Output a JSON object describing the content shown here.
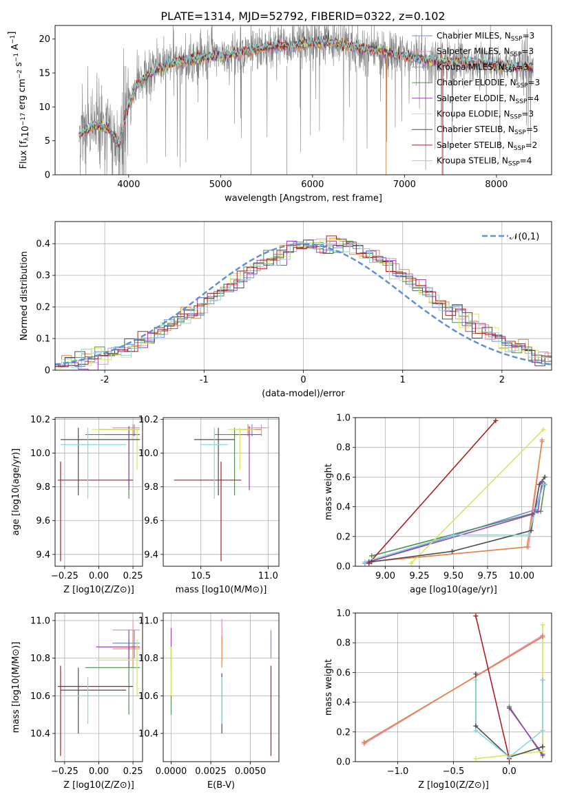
{
  "figure": {
    "title": "PLATE=1314, MJD=52792, FIBERID=0322, z=0.102"
  },
  "colors": {
    "Chabrier MILES": "#6b8fd8",
    "Salpeter MILES": "#e98fc8",
    "Kroupa MILES": "#e8863a",
    "Chabrier ELODIE": "#4f8f4f",
    "Salpeter ELODIE": "#9b3fb5",
    "Kroupa ELODIE": "#d4e85a",
    "Chabrier STELIB": "#4b4b4b",
    "Salpeter STELIB": "#b01c1c",
    "Kroupa STELIB": "#86d8e0",
    "data": "#808080",
    "gaussian": "#5b8fd6",
    "grid": "#b0b0b0"
  },
  "chart_data": [
    {
      "type": "line",
      "id": "spectrum",
      "title": "PLATE=1314, MJD=52792, FIBERID=0322, z=0.102",
      "xlabel": "wavelength [Angstrom, rest frame]",
      "ylabel": "Flux [f_λ 10^-17 erg cm^-2 s^-1 A^-1]",
      "xlim": [
        3200,
        8600
      ],
      "ylim": [
        0,
        22
      ],
      "xticks": [
        4000,
        5000,
        6000,
        7000,
        8000
      ],
      "yticks": [
        0,
        5,
        10,
        15,
        20
      ],
      "continuum": {
        "x": [
          3460,
          3500,
          3600,
          3700,
          3800,
          3900,
          4000,
          4100,
          4200,
          4300,
          4400,
          4500,
          4600,
          4800,
          5000,
          5200,
          5400,
          5600,
          5800,
          6000,
          6200,
          6400,
          6600,
          6800,
          7000,
          7200,
          7400,
          7600,
          7800,
          8000,
          8200,
          8400
        ],
        "y": [
          6,
          6.2,
          7,
          7.2,
          6.5,
          4.5,
          10.5,
          13.5,
          14.5,
          15.5,
          16,
          16.5,
          16.8,
          17.2,
          17.5,
          18,
          18.5,
          19,
          19,
          19.5,
          19.5,
          19,
          18.5,
          18,
          17.5,
          17,
          16.8,
          16.5,
          16.5,
          16.2,
          16,
          15.8
        ]
      },
      "legend": {
        "placement": "top-right",
        "entries": [
          {
            "label": "Chabrier MILES, N",
            "sub": "SSP",
            "n": "=3",
            "key": "Chabrier MILES"
          },
          {
            "label": "Salpeter MILES, N",
            "sub": "SSP",
            "n": "=3",
            "key": "Salpeter MILES"
          },
          {
            "label": "Kroupa MILES, N",
            "sub": "SSP",
            "n": "=3",
            "key": "Kroupa MILES"
          },
          {
            "label": "Chabrier ELODIE, N",
            "sub": "SSP",
            "n": "=3",
            "key": "Chabrier ELODIE"
          },
          {
            "label": "Salpeter ELODIE, N",
            "sub": "SSP",
            "n": "=4",
            "key": "Salpeter ELODIE"
          },
          {
            "label": "Kroupa ELODIE, N",
            "sub": "SSP",
            "n": "=3",
            "key": "Kroupa ELODIE"
          },
          {
            "label": "Chabrier STELIB, N",
            "sub": "SSP",
            "n": "=5",
            "key": "Chabrier STELIB"
          },
          {
            "label": "Salpeter STELIB, N",
            "sub": "SSP",
            "n": "=2",
            "key": "Salpeter STELIB"
          },
          {
            "label": "Kroupa STELIB, N",
            "sub": "SSP",
            "n": "=4",
            "key": "Kroupa STELIB"
          }
        ]
      }
    },
    {
      "type": "line",
      "id": "residuals",
      "xlabel": "(data-model)/error",
      "ylabel": "Normed distribution",
      "xlim": [
        -2.5,
        2.5
      ],
      "ylim": [
        0,
        0.47
      ],
      "xticks": [
        -2,
        -1,
        0,
        1,
        2
      ],
      "yticks": [
        0.0,
        0.1,
        0.2,
        0.3,
        0.4
      ],
      "gaussian_label": "𝒩(0,1)",
      "legend_placement": "top-right"
    },
    {
      "type": "scatter",
      "id": "age-vs-Z",
      "xlabel": "Z [log10(Z/Z⊙)]",
      "ylabel": "age [log10(age/yr)]",
      "xlim": [
        -0.32,
        0.32
      ],
      "ylim": [
        9.33,
        10.21
      ],
      "xticks": [
        "−0.25",
        "0.00",
        "0.25"
      ],
      "xtickvals": [
        -0.25,
        0,
        0.25
      ],
      "yticks": [
        "9.4",
        "9.6",
        "9.8",
        "10.0",
        "10.2"
      ],
      "ytickvals": [
        9.4,
        9.6,
        9.8,
        10.0,
        10.2
      ],
      "points": [
        {
          "key": "Chabrier MILES",
          "x": 0.26,
          "y": 10.14,
          "xlo": 0.0,
          "xhi": 0.3,
          "ylo": 10.1,
          "yhi": 10.17
        },
        {
          "key": "Salpeter MILES",
          "x": 0.25,
          "y": 10.15,
          "xlo": 0.1,
          "xhi": 0.3,
          "ylo": 10.1,
          "yhi": 10.17
        },
        {
          "key": "Kroupa MILES",
          "x": 0.25,
          "y": 10.14,
          "xlo": 0.0,
          "xhi": 0.3,
          "ylo": 10.1,
          "yhi": 10.17
        },
        {
          "key": "Chabrier ELODIE",
          "x": 0.22,
          "y": 10.11,
          "xlo": -0.1,
          "xhi": 0.3,
          "ylo": 9.73,
          "yhi": 10.15
        },
        {
          "key": "Salpeter ELODIE",
          "x": 0.22,
          "y": 10.11,
          "xlo": 0.05,
          "xhi": 0.3,
          "ylo": 9.78,
          "yhi": 10.16
        },
        {
          "key": "Kroupa ELODIE",
          "x": 0.28,
          "y": 10.14,
          "xlo": -0.05,
          "xhi": 0.3,
          "ylo": 9.9,
          "yhi": 10.15
        },
        {
          "key": "Chabrier STELIB",
          "x": -0.15,
          "y": 10.08,
          "xlo": -0.28,
          "xhi": 0.3,
          "ylo": 9.75,
          "yhi": 10.15
        },
        {
          "key": "Salpeter STELIB",
          "x": -0.28,
          "y": 9.84,
          "xlo": -0.3,
          "xhi": 0.25,
          "ylo": 9.36,
          "yhi": 9.95
        },
        {
          "key": "Kroupa STELIB",
          "x": -0.08,
          "y": 10.05,
          "xlo": -0.28,
          "xhi": 0.2,
          "ylo": 9.73,
          "yhi": 10.15
        }
      ]
    },
    {
      "type": "scatter",
      "id": "age-vs-mass",
      "xlabel": "mass [log10(M/M⊙)]",
      "ylabel": "",
      "xlim": [
        10.22,
        11.08
      ],
      "ylim": [
        9.33,
        10.21
      ],
      "xticks": [
        "10.5",
        "11.0"
      ],
      "xtickvals": [
        10.5,
        11.0
      ],
      "yticks": [
        "9.4",
        "9.6",
        "9.8",
        "10.0",
        "10.2"
      ],
      "ytickvals": [
        9.4,
        9.6,
        9.8,
        10.0,
        10.2
      ],
      "points": [
        {
          "key": "Chabrier MILES",
          "x": 10.88,
          "y": 10.14,
          "xlo": 10.8,
          "xhi": 10.95,
          "ylo": 10.1,
          "yhi": 10.17
        },
        {
          "key": "Salpeter MILES",
          "x": 10.95,
          "y": 10.15,
          "xlo": 10.85,
          "xhi": 11.0,
          "ylo": 10.1,
          "yhi": 10.17
        },
        {
          "key": "Kroupa MILES",
          "x": 10.85,
          "y": 10.14,
          "xlo": 10.75,
          "xhi": 10.95,
          "ylo": 10.1,
          "yhi": 10.17
        },
        {
          "key": "Chabrier ELODIE",
          "x": 10.75,
          "y": 10.11,
          "xlo": 10.6,
          "xhi": 10.9,
          "ylo": 9.75,
          "yhi": 10.15
        },
        {
          "key": "Salpeter ELODIE",
          "x": 10.86,
          "y": 10.11,
          "xlo": 10.75,
          "xhi": 10.95,
          "ylo": 9.78,
          "yhi": 10.16
        },
        {
          "key": "Kroupa ELODIE",
          "x": 10.79,
          "y": 10.14,
          "xlo": 10.7,
          "xhi": 10.9,
          "ylo": 9.9,
          "yhi": 10.15
        },
        {
          "key": "Chabrier STELIB",
          "x": 10.63,
          "y": 10.08,
          "xlo": 10.45,
          "xhi": 10.75,
          "ylo": 9.75,
          "yhi": 10.15
        },
        {
          "key": "Salpeter STELIB",
          "x": 10.65,
          "y": 9.84,
          "xlo": 10.3,
          "xhi": 10.8,
          "ylo": 9.36,
          "yhi": 9.95
        },
        {
          "key": "Kroupa STELIB",
          "x": 10.6,
          "y": 10.05,
          "xlo": 10.5,
          "xhi": 10.7,
          "ylo": 9.73,
          "yhi": 10.15
        }
      ]
    },
    {
      "type": "line",
      "id": "massweight-vs-age",
      "xlabel": "age [log10(age/yr)]",
      "ylabel": "mass weight",
      "xlim": [
        8.78,
        10.22
      ],
      "ylim": [
        0,
        1.0
      ],
      "xticks": [
        "9.00",
        "9.25",
        "9.50",
        "9.75",
        "10.00"
      ],
      "xtickvals": [
        9.0,
        9.25,
        9.5,
        9.75,
        10.0
      ],
      "yticks": [
        "0.0",
        "0.2",
        "0.4",
        "0.6",
        "0.8",
        "1.0"
      ],
      "ytickvals": [
        0,
        0.2,
        0.4,
        0.6,
        0.8,
        1.0
      ],
      "series": [
        {
          "key": "Chabrier MILES",
          "x": [
            8.85,
            10.1,
            10.16
          ],
          "y": [
            0.02,
            0.38,
            0.56
          ]
        },
        {
          "key": "Salpeter MILES",
          "x": [
            8.88,
            10.05,
            10.15
          ],
          "y": [
            0.03,
            0.13,
            0.85
          ]
        },
        {
          "key": "Kroupa MILES",
          "x": [
            8.88,
            10.04,
            10.15
          ],
          "y": [
            0.03,
            0.13,
            0.84
          ]
        },
        {
          "key": "Chabrier ELODIE",
          "x": [
            8.9,
            10.14,
            10.17
          ],
          "y": [
            0.07,
            0.37,
            0.55
          ]
        },
        {
          "key": "Salpeter ELODIE",
          "x": [
            8.88,
            10.08,
            10.12,
            10.15
          ],
          "y": [
            0.03,
            0.35,
            0.37,
            0.57
          ]
        },
        {
          "key": "Kroupa ELODIE",
          "x": [
            9.19,
            10.16
          ],
          "y": [
            0.02,
            0.92
          ]
        },
        {
          "key": "Chabrier STELIB",
          "x": [
            8.9,
            9.49,
            10.07,
            10.13,
            10.17
          ],
          "y": [
            0.03,
            0.1,
            0.24,
            0.55,
            0.6
          ]
        },
        {
          "key": "Salpeter STELIB",
          "x": [
            8.88,
            9.81
          ],
          "y": [
            0.02,
            0.98
          ]
        },
        {
          "key": "Kroupa STELIB",
          "x": [
            8.85,
            9.5,
            10.05,
            10.16
          ],
          "y": [
            0.03,
            0.21,
            0.21,
            0.55
          ]
        }
      ]
    },
    {
      "type": "scatter",
      "id": "mass-vs-Z",
      "xlabel": "Z [log10(Z/Z⊙)]",
      "ylabel": "mass [log10(M/M⊙)]",
      "xlim": [
        -0.32,
        0.32
      ],
      "ylim": [
        10.25,
        11.04
      ],
      "xticks": [
        "−0.25",
        "0.00",
        "0.25"
      ],
      "xtickvals": [
        -0.25,
        0,
        0.25
      ],
      "yticks": [
        "10.4",
        "10.6",
        "10.8",
        "11.0"
      ],
      "ytickvals": [
        10.4,
        10.6,
        10.8,
        11.0
      ],
      "points": [
        {
          "key": "Chabrier MILES",
          "x": 0.26,
          "y": 10.88,
          "xlo": 0.1,
          "xhi": 0.3,
          "ylo": 10.8,
          "yhi": 10.95
        },
        {
          "key": "Salpeter MILES",
          "x": 0.25,
          "y": 10.95,
          "xlo": 0.1,
          "xhi": 0.3,
          "ylo": 10.85,
          "yhi": 11.0
        },
        {
          "key": "Kroupa MILES",
          "x": 0.25,
          "y": 10.85,
          "xlo": 0.1,
          "xhi": 0.3,
          "ylo": 10.75,
          "yhi": 10.95
        },
        {
          "key": "Chabrier ELODIE",
          "x": 0.22,
          "y": 10.75,
          "xlo": -0.1,
          "xhi": 0.3,
          "ylo": 10.5,
          "yhi": 10.9
        },
        {
          "key": "Salpeter ELODIE",
          "x": 0.22,
          "y": 10.86,
          "xlo": -0.02,
          "xhi": 0.3,
          "ylo": 10.75,
          "yhi": 10.95
        },
        {
          "key": "Kroupa ELODIE",
          "x": 0.28,
          "y": 10.79,
          "xlo": -0.02,
          "xhi": 0.3,
          "ylo": 10.6,
          "yhi": 10.9
        },
        {
          "key": "Chabrier STELIB",
          "x": -0.15,
          "y": 10.63,
          "xlo": -0.28,
          "xhi": 0.2,
          "ylo": 10.4,
          "yhi": 10.75
        },
        {
          "key": "Salpeter STELIB",
          "x": -0.28,
          "y": 10.65,
          "xlo": -0.3,
          "xhi": 0.25,
          "ylo": 10.28,
          "yhi": 10.76
        },
        {
          "key": "Kroupa STELIB",
          "x": -0.08,
          "y": 10.6,
          "xlo": -0.28,
          "xhi": 0.2,
          "ylo": 10.45,
          "yhi": 10.7
        }
      ]
    },
    {
      "type": "scatter",
      "id": "mass-vs-EBV",
      "xlabel": "E(B-V)",
      "ylabel": "",
      "xlim": [
        -0.0005,
        0.0068
      ],
      "ylim": [
        10.25,
        11.04
      ],
      "xticks": [
        "0.0000",
        "0.0025",
        "0.0050"
      ],
      "xtickvals": [
        0,
        0.0025,
        0.005
      ],
      "yticks": [
        "10.4",
        "10.6",
        "10.8",
        "11.0"
      ],
      "ytickvals": [
        10.4,
        10.6,
        10.8,
        11.0
      ],
      "points": [
        {
          "key": "Chabrier MILES",
          "x": 0.0063,
          "y": 10.88,
          "ylo": 10.8,
          "yhi": 10.95
        },
        {
          "key": "Salpeter MILES",
          "x": 0.0032,
          "y": 10.95,
          "ylo": 10.88,
          "yhi": 11.01
        },
        {
          "key": "Kroupa MILES",
          "x": 0.0032,
          "y": 10.85,
          "ylo": 10.75,
          "yhi": 10.92
        },
        {
          "key": "Chabrier ELODIE",
          "x": 0.0,
          "y": 10.75,
          "ylo": 10.5,
          "yhi": 10.86
        },
        {
          "key": "Salpeter ELODIE",
          "x": 0.0,
          "y": 10.86,
          "ylo": 10.74,
          "yhi": 10.96
        },
        {
          "key": "Kroupa ELODIE",
          "x": 0.0,
          "y": 10.79,
          "ylo": 10.6,
          "yhi": 10.86
        },
        {
          "key": "Chabrier STELIB",
          "x": 0.0032,
          "y": 10.63,
          "ylo": 10.4,
          "yhi": 10.72
        },
        {
          "key": "Salpeter STELIB",
          "x": 0.0063,
          "y": 10.65,
          "ylo": 10.28,
          "yhi": 10.76
        },
        {
          "key": "Kroupa STELIB",
          "x": 0.0032,
          "y": 10.6,
          "ylo": 10.45,
          "yhi": 10.7
        }
      ]
    },
    {
      "type": "line",
      "id": "massweight-vs-Z",
      "xlabel": "Z [log10(Z/Z⊙)]",
      "ylabel": "mass weight",
      "xlim": [
        -1.38,
        0.38
      ],
      "ylim": [
        0,
        1.0
      ],
      "xticks": [
        "−1.0",
        "−0.5",
        "0.0"
      ],
      "xtickvals": [
        -1.0,
        -0.5,
        0.0
      ],
      "yticks": [
        "0.0",
        "0.2",
        "0.4",
        "0.6",
        "0.8",
        "1.0"
      ],
      "ytickvals": [
        0,
        0.2,
        0.4,
        0.6,
        0.8,
        1.0
      ],
      "series": [
        {
          "key": "Chabrier MILES",
          "x": [
            -1.3,
            0.3
          ],
          "y": [
            0.13,
            0.84
          ]
        },
        {
          "key": "Salpeter MILES",
          "x": [
            -1.3,
            0.3
          ],
          "y": [
            0.12,
            0.85
          ]
        },
        {
          "key": "Kroupa MILES",
          "x": [
            -1.3,
            0.3
          ],
          "y": [
            0.13,
            0.84
          ]
        },
        {
          "key": "Chabrier ELODIE",
          "x": [
            -0.0,
            0.3
          ],
          "y": [
            0.37,
            0.04
          ]
        },
        {
          "key": "Salpeter ELODIE",
          "x": [
            0.0,
            0.3,
            0.3
          ],
          "y": [
            0.36,
            0.05,
            0.55
          ]
        },
        {
          "key": "Kroupa ELODIE",
          "x": [
            -0.3,
            0.3,
            0.3
          ],
          "y": [
            0.02,
            0.07,
            0.92
          ]
        },
        {
          "key": "Chabrier STELIB",
          "x": [
            -0.3,
            -0.3,
            0.0,
            0.3
          ],
          "y": [
            0.59,
            0.24,
            0.03,
            0.1
          ]
        },
        {
          "key": "Salpeter STELIB",
          "x": [
            -0.3,
            0.0
          ],
          "y": [
            0.98,
            0.02
          ]
        },
        {
          "key": "Kroupa STELIB",
          "x": [
            -0.3,
            -0.3,
            0.0,
            0.3,
            0.3
          ],
          "y": [
            0.55,
            0.21,
            0.03,
            0.21,
            0.55
          ]
        }
      ]
    }
  ]
}
